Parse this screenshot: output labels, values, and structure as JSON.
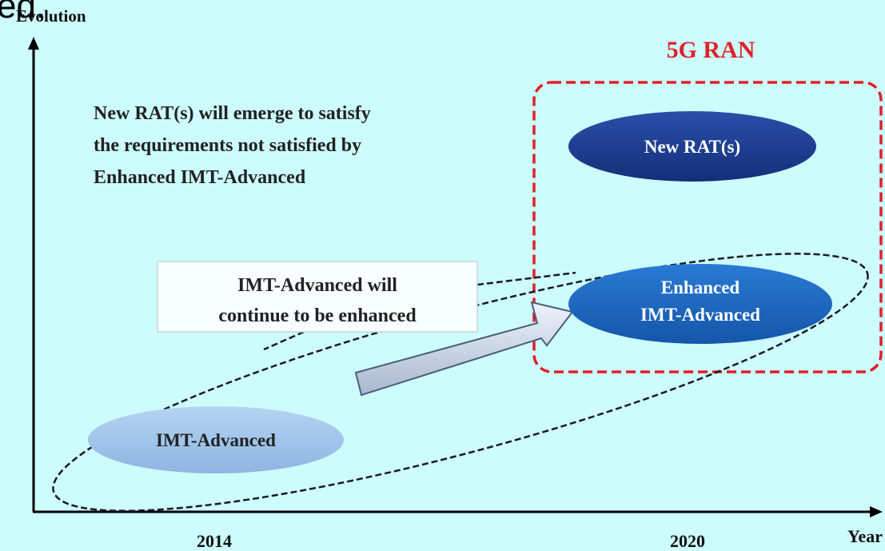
{
  "fragment": "ed.",
  "axes": {
    "y_label": "Evolution",
    "x_label": "Year",
    "x_ticks": [
      "2014",
      "2020"
    ]
  },
  "group": {
    "title": "5G RAN"
  },
  "note": {
    "lines": [
      "New RAT(s) will emerge to satisfy",
      "the requirements not satisfied by",
      "Enhanced IMT-Advanced"
    ]
  },
  "nodes": [
    {
      "lines": [
        "New RAT(s)"
      ]
    },
    {
      "lines": [
        "Enhanced",
        "IMT-Advanced"
      ]
    },
    {
      "lines": [
        "IMT-Advanced"
      ]
    }
  ],
  "callout": {
    "lines": [
      "IMT-Advanced will",
      "continue to be enhanced"
    ]
  }
}
